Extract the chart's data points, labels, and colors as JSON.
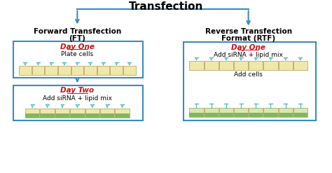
{
  "title": "Transfection",
  "left_title_line1": "Forward Transfection",
  "left_title_line2": "(FT)",
  "right_title_line1": "Reverse Transfection",
  "right_title_line2": "Format (RTF)",
  "left_box1_day": "Day One",
  "left_box1_text": "Plate cells",
  "left_box2_day": "Day Two",
  "left_box2_text": "Add siRNA + lipid mix",
  "right_box1_day": "Day One",
  "right_box1_text1": "Add siRNA + lipid mix",
  "right_box1_text2": "Add cells",
  "box_border_color": "#3a8bbf",
  "day_color": "#cc1111",
  "arrow_color": "#3a8bbf",
  "well_fill": "#f0e8a8",
  "well_border": "#b8a870",
  "well_fill2": "#d8e8b0",
  "droplet_color": "#50c0c0",
  "cell_color": "#80b860",
  "title_fontsize": 11,
  "subtitle_fontsize": 7.5,
  "day_fontsize": 7.5,
  "text_fontsize": 6.5
}
